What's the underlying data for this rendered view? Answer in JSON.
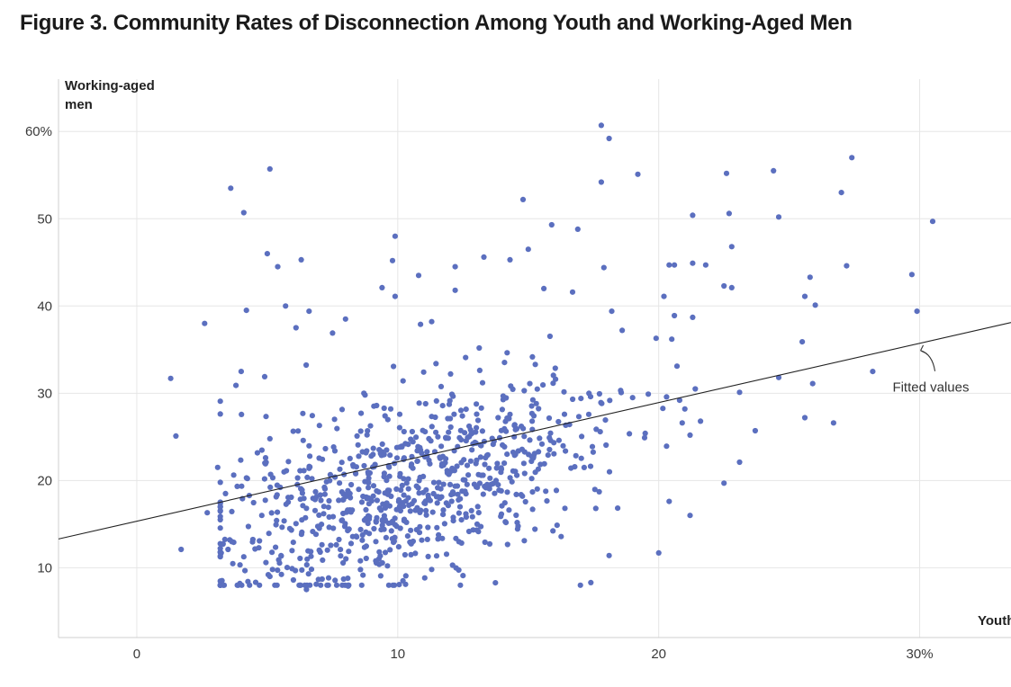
{
  "title_number": "Figure 3.",
  "title_text": "Community Rates of Disconnection Among Youth and Working-Aged Men",
  "chart_data": {
    "type": "scatter",
    "title": "Figure 3. Community Rates of Disconnection Among Youth and Working-Aged Men",
    "xlabel": "Youth",
    "ylabel_lines": [
      "Working-aged",
      "men"
    ],
    "xlim": [
      -3,
      33.5
    ],
    "ylim": [
      2,
      66
    ],
    "x_ticks": [
      0,
      10,
      20,
      30
    ],
    "x_tick_labels": [
      "0",
      "10",
      "20",
      "30%"
    ],
    "y_ticks": [
      10,
      20,
      30,
      40,
      50,
      60
    ],
    "y_tick_labels": [
      "10",
      "20",
      "30",
      "40",
      "50",
      "60%"
    ],
    "grid": true,
    "point_color": "#5b6fbf",
    "fit_color": "#222222",
    "fit_label": "Fitted values",
    "fit_line": {
      "x0": -3,
      "y0": 13.3,
      "x1": 33.5,
      "y1": 38.1
    },
    "fit_label_at": {
      "x": 30.1,
      "y": 30.7
    },
    "arrow_to": {
      "x": 30,
      "y": 35.1
    },
    "points": [
      [
        1.3,
        31.7
      ],
      [
        1.5,
        25.1
      ],
      [
        1.7,
        12.1
      ],
      [
        2.6,
        38.0
      ],
      [
        2.7,
        16.3
      ],
      [
        3.1,
        21.5
      ],
      [
        3.4,
        18.5
      ],
      [
        3.6,
        53.5
      ],
      [
        4.1,
        50.7
      ],
      [
        4.2,
        39.5
      ],
      [
        4.0,
        32.5
      ],
      [
        5.1,
        55.7
      ],
      [
        5.4,
        44.5
      ],
      [
        5.0,
        46.0
      ],
      [
        6.3,
        45.3
      ],
      [
        4.9,
        31.9
      ],
      [
        5.7,
        40.0
      ],
      [
        3.8,
        30.9
      ],
      [
        9.9,
        48.0
      ],
      [
        9.8,
        45.2
      ],
      [
        9.4,
        42.1
      ],
      [
        9.9,
        41.1
      ],
      [
        10.8,
        43.5
      ],
      [
        8.0,
        38.5
      ],
      [
        7.5,
        36.9
      ],
      [
        6.1,
        37.5
      ],
      [
        6.6,
        39.4
      ],
      [
        11.3,
        38.2
      ],
      [
        12.2,
        44.5
      ],
      [
        12.2,
        41.8
      ],
      [
        13.3,
        45.6
      ],
      [
        14.3,
        45.3
      ],
      [
        15.0,
        46.5
      ],
      [
        14.8,
        52.2
      ],
      [
        15.9,
        49.3
      ],
      [
        16.9,
        48.8
      ],
      [
        15.6,
        42.0
      ],
      [
        16.7,
        41.6
      ],
      [
        17.9,
        44.4
      ],
      [
        18.2,
        39.4
      ],
      [
        17.8,
        60.7
      ],
      [
        18.1,
        59.2
      ],
      [
        17.8,
        54.2
      ],
      [
        19.2,
        55.1
      ],
      [
        20.4,
        44.7
      ],
      [
        20.6,
        44.7
      ],
      [
        21.3,
        44.9
      ],
      [
        21.3,
        50.4
      ],
      [
        22.6,
        55.2
      ],
      [
        22.7,
        50.6
      ],
      [
        22.8,
        46.8
      ],
      [
        21.8,
        44.7
      ],
      [
        22.5,
        42.3
      ],
      [
        22.8,
        42.1
      ],
      [
        24.4,
        55.5
      ],
      [
        24.6,
        50.2
      ],
      [
        27.0,
        53.0
      ],
      [
        27.4,
        57.0
      ],
      [
        27.2,
        44.6
      ],
      [
        25.8,
        43.3
      ],
      [
        25.6,
        41.1
      ],
      [
        26.0,
        40.1
      ],
      [
        29.7,
        43.6
      ],
      [
        30.5,
        49.7
      ],
      [
        29.9,
        39.4
      ],
      [
        25.5,
        35.9
      ],
      [
        24.6,
        31.8
      ],
      [
        25.9,
        31.1
      ],
      [
        28.2,
        32.5
      ],
      [
        26.7,
        26.6
      ],
      [
        25.6,
        27.2
      ],
      [
        23.7,
        25.7
      ],
      [
        23.1,
        30.1
      ],
      [
        23.1,
        22.1
      ],
      [
        22.5,
        19.7
      ],
      [
        20.0,
        11.7
      ],
      [
        21.2,
        16.0
      ],
      [
        20.4,
        17.6
      ],
      [
        18.1,
        11.4
      ],
      [
        17.4,
        8.3
      ],
      [
        17.0,
        8.0
      ],
      [
        12.4,
        8.0
      ],
      [
        6.5,
        7.5
      ],
      [
        8.1,
        7.9
      ],
      [
        10.3,
        8.1
      ],
      [
        7.1,
        8.7
      ],
      [
        6.0,
        8.6
      ],
      [
        5.1,
        9.0
      ],
      [
        5.2,
        9.8
      ],
      [
        10.2,
        8.5
      ],
      [
        11.3,
        9.8
      ],
      [
        12.1,
        10.3
      ],
      [
        12.5,
        9.1
      ],
      [
        20.9,
        26.6
      ],
      [
        21.0,
        28.2
      ],
      [
        20.5,
        36.2
      ],
      [
        20.7,
        33.1
      ],
      [
        21.4,
        30.5
      ],
      [
        20.8,
        29.2
      ],
      [
        21.2,
        25.2
      ],
      [
        21.6,
        26.8
      ],
      [
        20.2,
        41.1
      ],
      [
        20.6,
        38.9
      ],
      [
        21.3,
        38.7
      ],
      [
        19.9,
        36.3
      ],
      [
        18.6,
        37.2
      ],
      [
        19.6,
        29.9
      ],
      [
        19.0,
        29.5
      ]
    ],
    "cluster": {
      "seed": 98765,
      "count": 840,
      "x_mean": 10.3,
      "x_sd": 3.9,
      "x_min": 3.2,
      "x_max": 20.3,
      "y_base": 10.3,
      "y_slope": 0.88,
      "y_sd": 5.3,
      "y_min": 8.0,
      "y_max": 39.5
    }
  }
}
